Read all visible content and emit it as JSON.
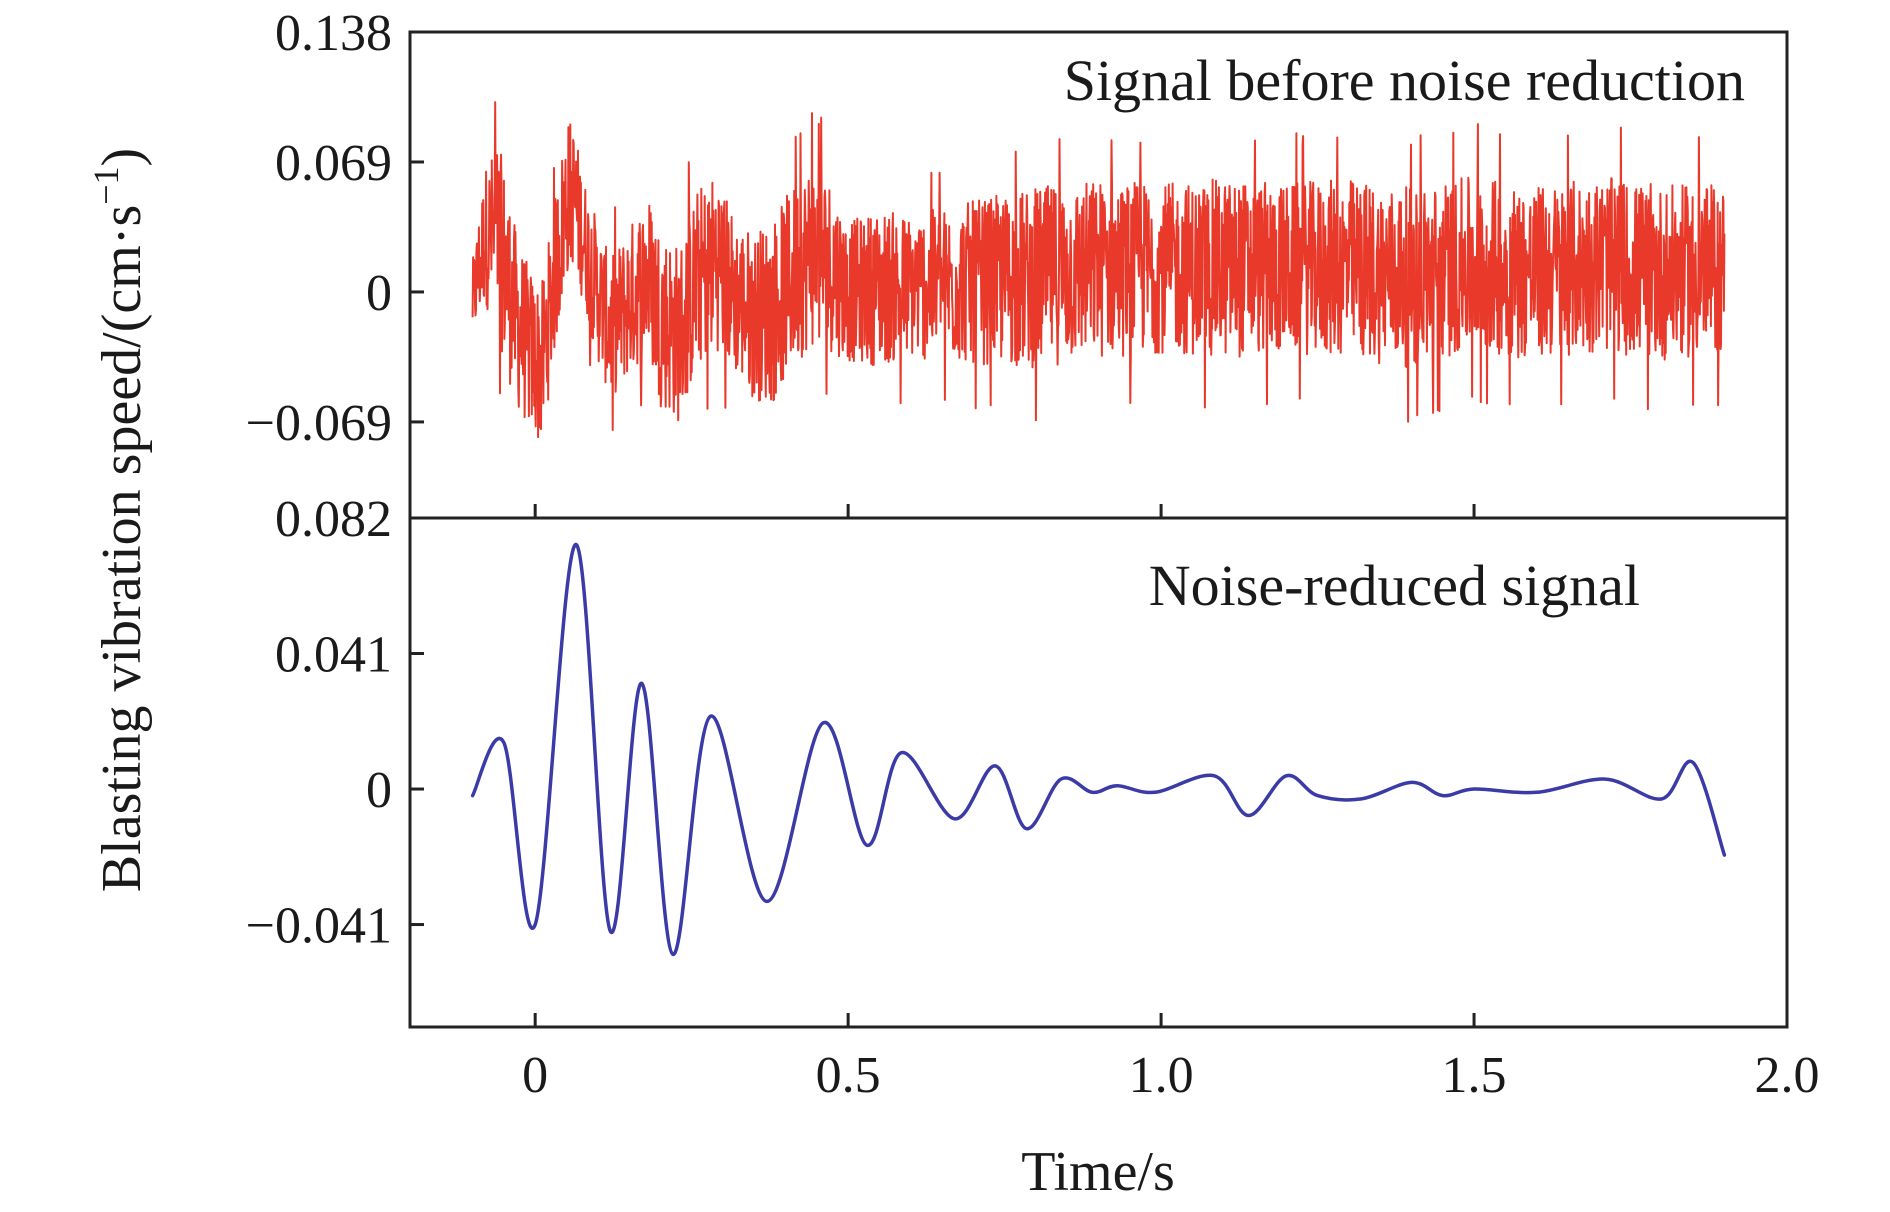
{
  "chart_data": [
    {
      "type": "line",
      "panel": "top",
      "annotation": "Signal before noise reduction",
      "yticks": [
        -0.069,
        0,
        0.069,
        0.138
      ],
      "ytick_labels": [
        "−0.069",
        "0",
        "0.069",
        "0.138"
      ],
      "ylim": [
        -0.12,
        0.138
      ],
      "xlim": [
        -0.2,
        2.0
      ],
      "x_range": [
        -0.1,
        1.9
      ],
      "series": [
        {
          "color": "#e8392a",
          "envelope": {
            "x": [
              -0.1,
              -0.08,
              -0.06,
              -0.05,
              -0.03,
              -0.01,
              0.01,
              0.03,
              0.05,
              0.06,
              0.08,
              0.1,
              0.12,
              0.15,
              0.18,
              0.2,
              0.23,
              0.26,
              0.29,
              0.32,
              0.35,
              0.38,
              0.41,
              0.44,
              0.47,
              0.5,
              0.55,
              0.6,
              0.7,
              0.8,
              0.9,
              1.0,
              1.1,
              1.2,
              1.3,
              1.4,
              1.5,
              1.6,
              1.7,
              1.8,
              1.9
            ],
            "upper": [
              0.03,
              0.09,
              0.11,
              0.1,
              0.06,
              0.04,
              0.03,
              0.07,
              0.12,
              0.115,
              0.08,
              0.06,
              0.04,
              0.06,
              0.08,
              0.065,
              0.055,
              0.085,
              0.095,
              0.065,
              0.06,
              0.07,
              0.085,
              0.1,
              0.09,
              0.06,
              0.07,
              0.065,
              0.075,
              0.085,
              0.09,
              0.085,
              0.09,
              0.085,
              0.09,
              0.085,
              0.09,
              0.085,
              0.09,
              0.085,
              0.085
            ],
            "lower": [
              -0.04,
              -0.03,
              -0.05,
              -0.07,
              -0.09,
              -0.1,
              -0.11,
              -0.06,
              -0.02,
              -0.01,
              -0.03,
              -0.06,
              -0.08,
              -0.07,
              -0.06,
              -0.09,
              -0.1,
              -0.07,
              -0.06,
              -0.07,
              -0.085,
              -0.09,
              -0.07,
              -0.06,
              -0.06,
              -0.06,
              -0.065,
              -0.06,
              -0.065,
              -0.07,
              -0.065,
              -0.06,
              -0.065,
              -0.06,
              -0.065,
              -0.07,
              -0.06,
              -0.065,
              -0.06,
              -0.065,
              -0.06
            ]
          }
        }
      ]
    },
    {
      "type": "line",
      "panel": "bottom",
      "annotation": "Noise-reduced signal",
      "yticks": [
        -0.041,
        0,
        0.041,
        0.082
      ],
      "ytick_labels": [
        "−0.041",
        "0",
        "0.041",
        "0.082"
      ],
      "ylim": [
        -0.072,
        0.082
      ],
      "xlim": [
        -0.2,
        2.0
      ],
      "xticks": [
        0,
        0.5,
        1.0,
        1.5,
        2.0
      ],
      "xtick_labels": [
        "0",
        "0.5",
        "1.0",
        "1.5",
        "2.0"
      ],
      "xlabel": "Time/s",
      "series": [
        {
          "color": "#3b3ba8",
          "x": [
            -0.1,
            -0.05,
            0.0,
            0.065,
            0.12,
            0.17,
            0.22,
            0.28,
            0.37,
            0.46,
            0.53,
            0.585,
            0.67,
            0.735,
            0.785,
            0.84,
            0.89,
            0.93,
            0.99,
            1.085,
            1.14,
            1.2,
            1.25,
            1.32,
            1.4,
            1.45,
            1.5,
            1.6,
            1.71,
            1.8,
            1.85,
            1.9
          ],
          "y": [
            -0.002,
            0.014,
            -0.041,
            0.074,
            -0.043,
            0.032,
            -0.05,
            0.022,
            -0.034,
            0.02,
            -0.017,
            0.011,
            -0.009,
            0.007,
            -0.012,
            0.003,
            -0.001,
            0.001,
            -0.001,
            0.004,
            -0.008,
            0.004,
            -0.002,
            -0.003,
            0.002,
            -0.002,
            0.0,
            -0.001,
            0.003,
            -0.003,
            0.008,
            -0.02
          ]
        }
      ]
    }
  ],
  "ylabel_main": "Blasting vibration speed/(cm·s",
  "ylabel_sup": "−1",
  "ylabel_close": ")"
}
